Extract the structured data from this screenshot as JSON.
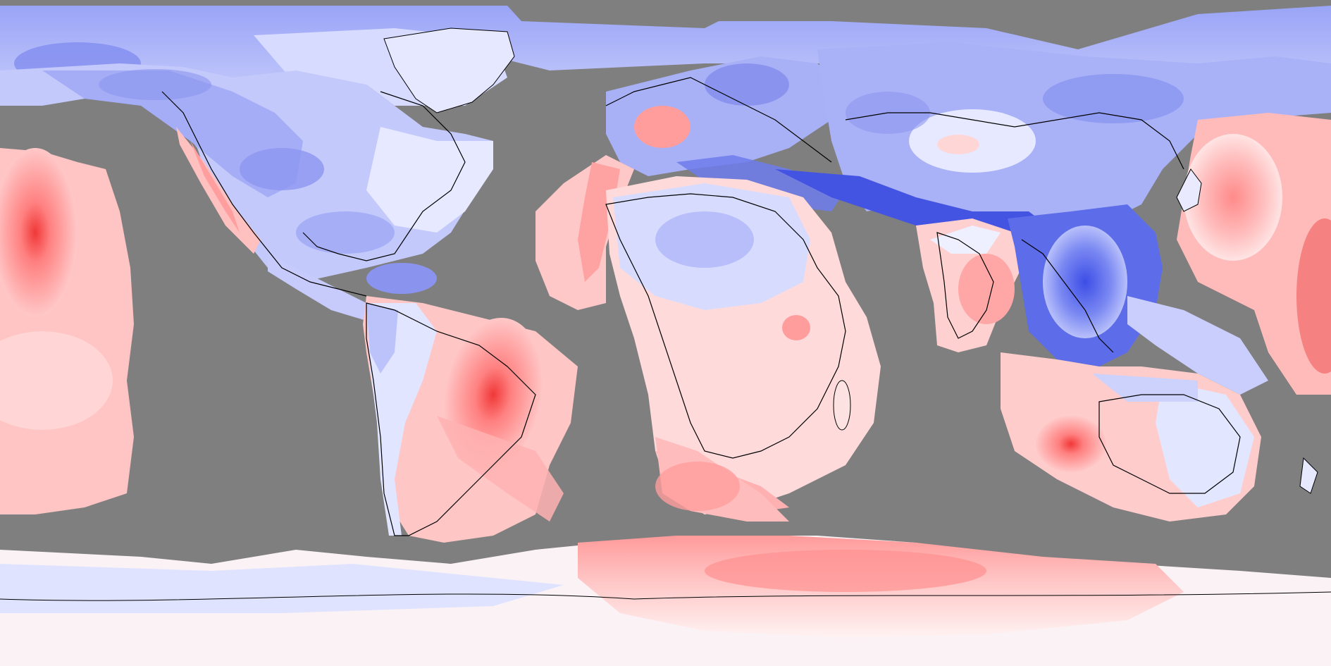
{
  "map": {
    "projection": "equirectangular",
    "background_color": "#7f7f7f",
    "coastline_color": "#000000",
    "palette": {
      "strong_blue": "#3344e0",
      "blue": "#7080f0",
      "light_blue": "#a8b0f8",
      "pale_blue": "#dde2ff",
      "near_white": "#f6f4ff",
      "pale_red": "#ffe6e6",
      "light_red": "#ffc4c4",
      "red": "#ff9a9a",
      "strong_red": "#f04848"
    },
    "features": [
      "greenland",
      "north-america",
      "central-america",
      "south-america",
      "europe",
      "africa",
      "madagascar",
      "asia",
      "india",
      "southeast-asia",
      "japan",
      "australia",
      "new-zealand",
      "antarctica"
    ]
  }
}
